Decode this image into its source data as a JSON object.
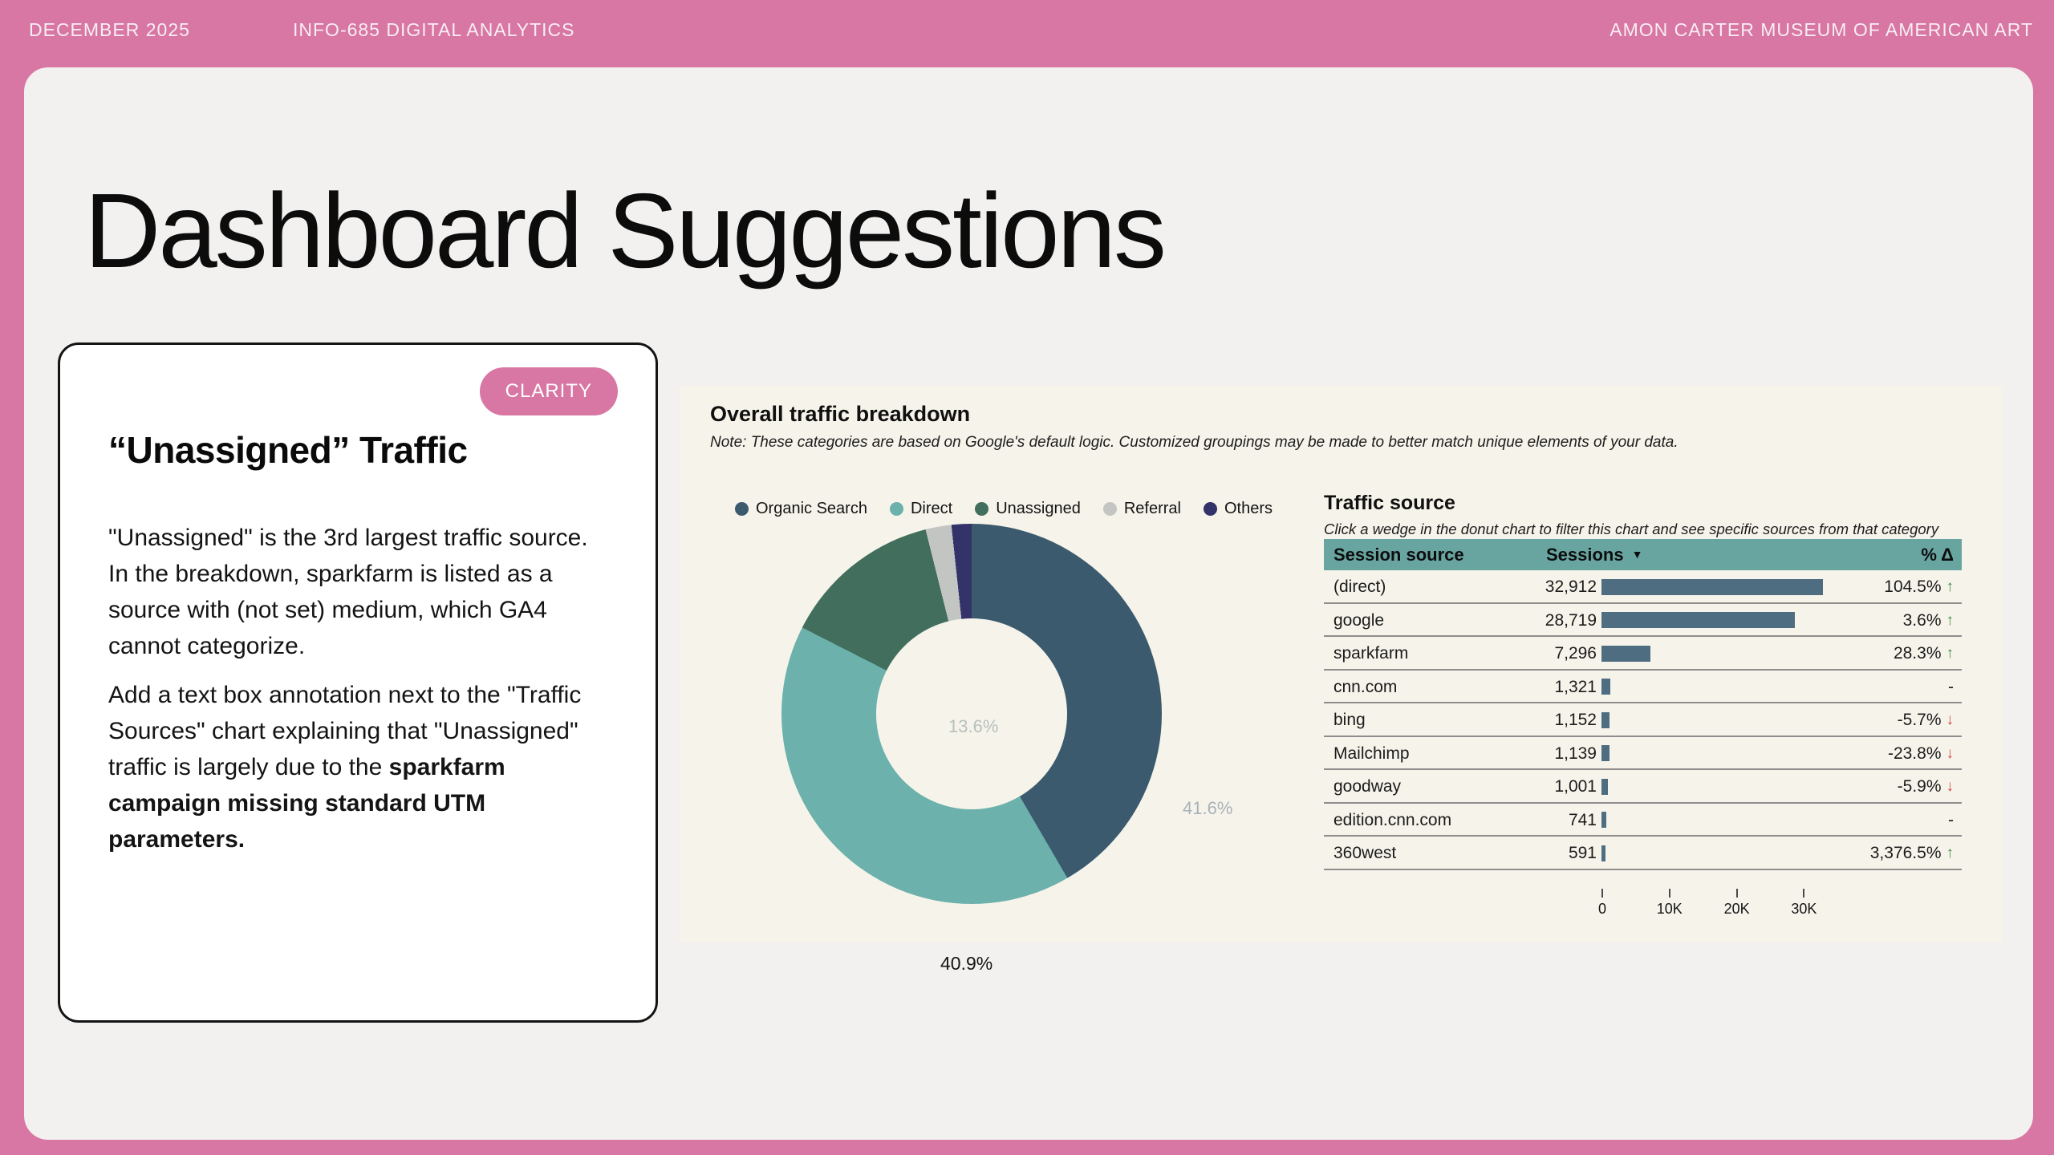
{
  "header": {
    "left": "DECEMBER 2025",
    "center": "INFO-685 DIGITAL ANALYTICS",
    "right": "AMON CARTER MUSEUM OF AMERICAN ART"
  },
  "page_title": "Dashboard Suggestions",
  "suggestion_card": {
    "badge": "CLARITY",
    "title": "“Unassigned” Traffic",
    "paragraph1": "\"Unassigned\" is the 3rd largest traffic source. In the breakdown, sparkfarm is listed as a source with (not set) medium, which GA4 cannot categorize.",
    "paragraph2_prefix": "Add a text box annotation next to the \"Traffic Sources\" chart explaining that \"Unassigned\" traffic is largely due to the ",
    "paragraph2_bold": "sparkfarm campaign missing standard UTM parameters."
  },
  "dashboard": {
    "title": "Overall traffic breakdown",
    "note": "Note: These categories are based on Google's default logic. Customized groupings may be made to better match unique elements of your data.",
    "traffic_source": {
      "title": "Traffic source",
      "subtitle": "Click a wedge in the donut chart to filter this chart and see specific sources from that category",
      "columns": {
        "source": "Session source",
        "sessions": "Sessions",
        "delta": "% Δ"
      },
      "sort_icon": "▼"
    }
  },
  "colors": {
    "accent_pink": "#d876a4",
    "canvas_gray": "#f2f1ef",
    "panel_cream": "#f6f4ea",
    "table_header_teal": "#68a5a1",
    "bar_blue": "#4f6d80",
    "trend_up_green": "#3f8f44",
    "trend_down_red": "#cf4a3f"
  },
  "chart_data": [
    {
      "type": "pie",
      "title": "Overall traffic breakdown",
      "donut": true,
      "legend_position": "top",
      "categories": [
        "Organic Search",
        "Direct",
        "Unassigned",
        "Referral",
        "Others"
      ],
      "values": [
        41.6,
        40.9,
        13.6,
        2.2,
        1.7
      ],
      "colors": [
        "#3b5a6e",
        "#6db1ac",
        "#426e5d",
        "#c3c5c2",
        "#333269"
      ],
      "displayed_labels": [
        "41.6%",
        "40.9%",
        "13.6%"
      ]
    },
    {
      "type": "table",
      "title": "Traffic source",
      "columns": [
        "Session source",
        "Sessions",
        "% Δ"
      ],
      "bar_color": "#4f6d80",
      "x_axis": {
        "ticks": [
          "0",
          "10K",
          "20K",
          "30K"
        ],
        "tick_values": [
          0,
          10000,
          20000,
          30000
        ]
      },
      "rows": [
        {
          "source": "(direct)",
          "sessions": "32,912",
          "sessions_value": 32912,
          "delta": "104.5%",
          "trend": "up"
        },
        {
          "source": "google",
          "sessions": "28,719",
          "sessions_value": 28719,
          "delta": "3.6%",
          "trend": "up"
        },
        {
          "source": "sparkfarm",
          "sessions": "7,296",
          "sessions_value": 7296,
          "delta": "28.3%",
          "trend": "up"
        },
        {
          "source": "cnn.com",
          "sessions": "1,321",
          "sessions_value": 1321,
          "delta": "-",
          "trend": "none"
        },
        {
          "source": "bing",
          "sessions": "1,152",
          "sessions_value": 1152,
          "delta": "-5.7%",
          "trend": "down"
        },
        {
          "source": "Mailchimp",
          "sessions": "1,139",
          "sessions_value": 1139,
          "delta": "-23.8%",
          "trend": "down"
        },
        {
          "source": "goodway",
          "sessions": "1,001",
          "sessions_value": 1001,
          "delta": "-5.9%",
          "trend": "down"
        },
        {
          "source": "edition.cnn.com",
          "sessions": "741",
          "sessions_value": 741,
          "delta": "-",
          "trend": "none"
        },
        {
          "source": "360west",
          "sessions": "591",
          "sessions_value": 591,
          "delta": "3,376.5%",
          "trend": "up"
        }
      ]
    }
  ]
}
